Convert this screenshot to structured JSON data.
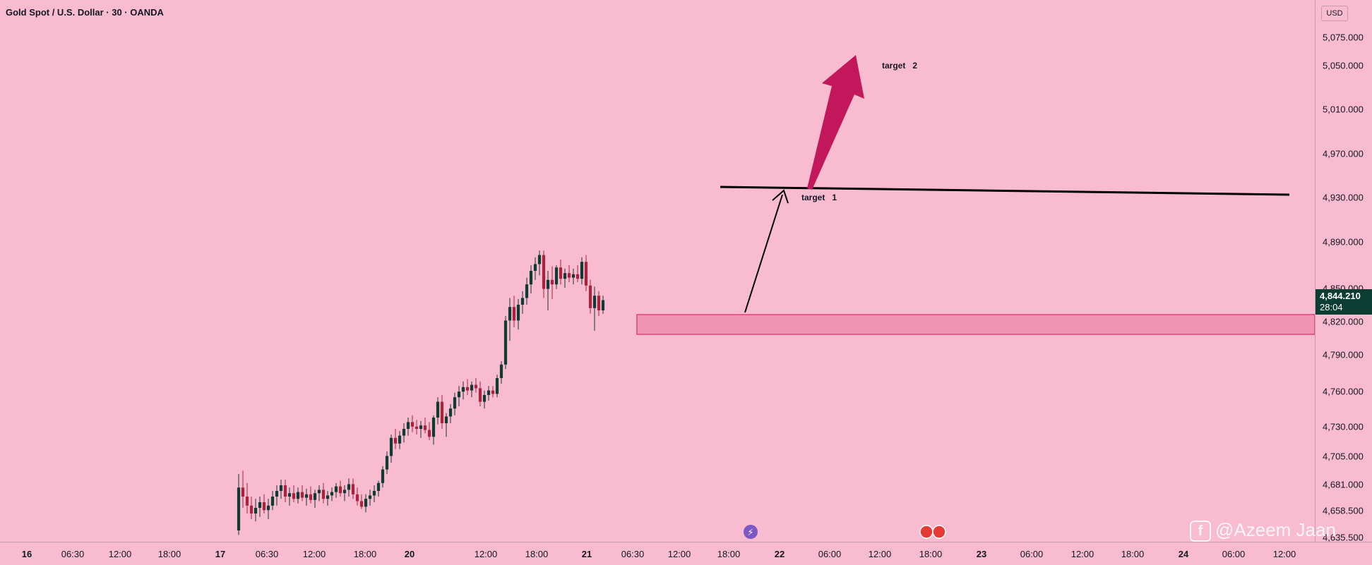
{
  "header": {
    "title": "Gold Spot / U.S. Dollar · 30 · OANDA"
  },
  "axis": {
    "currency": "USD",
    "price_ticks": [
      "5,075.000",
      "5,050.000",
      "5,010.000",
      "4,970.000",
      "4,930.000",
      "4,890.000",
      "4,850.000",
      "4,820.000",
      "4,790.000",
      "4,760.000",
      "4,730.000",
      "4,705.000",
      "4,681.000",
      "4,658.500",
      "4,635.500"
    ],
    "time_ticks": [
      {
        "label": "16",
        "bold": true
      },
      {
        "label": "06:30",
        "bold": false
      },
      {
        "label": "12:00",
        "bold": false
      },
      {
        "label": "18:00",
        "bold": false
      },
      {
        "label": "17",
        "bold": true
      },
      {
        "label": "06:30",
        "bold": false
      },
      {
        "label": "12:00",
        "bold": false
      },
      {
        "label": "18:00",
        "bold": false
      },
      {
        "label": "20",
        "bold": true
      },
      {
        "label": "12:00",
        "bold": false
      },
      {
        "label": "18:00",
        "bold": false
      },
      {
        "label": "21",
        "bold": true
      },
      {
        "label": "06:30",
        "bold": false
      },
      {
        "label": "12:00",
        "bold": false
      },
      {
        "label": "18:00",
        "bold": false
      },
      {
        "label": "22",
        "bold": true
      },
      {
        "label": "06:00",
        "bold": false
      },
      {
        "label": "12:00",
        "bold": false
      },
      {
        "label": "18:00",
        "bold": false
      },
      {
        "label": "23",
        "bold": true
      },
      {
        "label": "06:00",
        "bold": false
      },
      {
        "label": "12:00",
        "bold": false
      },
      {
        "label": "18:00",
        "bold": false
      },
      {
        "label": "24",
        "bold": true
      },
      {
        "label": "06:00",
        "bold": false
      },
      {
        "label": "12:00",
        "bold": false
      }
    ]
  },
  "last_price": {
    "price": "4,844.210",
    "countdown": "28:04"
  },
  "annotations": {
    "target1": "target   1",
    "target2": "target   2"
  },
  "watermark": {
    "text": "@Azeem Jaan"
  },
  "colors": {
    "background": "#f8bbd0",
    "up": "#0f3b32",
    "down": "#a8233d",
    "zone": "#f194b4",
    "zone_border": "#e0407a",
    "arrow": "#c2185b"
  },
  "chart_data": {
    "type": "candlestick",
    "symbol": "Gold Spot / U.S. Dollar",
    "interval": "30",
    "ylim": [
      4635.5,
      5086
    ],
    "levels": {
      "target_line": 4935,
      "support_zone": [
        4812,
        4828
      ]
    },
    "candles": [
      {
        "o": 4640,
        "h": 4690,
        "l": 4636,
        "c": 4678
      },
      {
        "o": 4678,
        "h": 4693,
        "l": 4660,
        "c": 4670
      },
      {
        "o": 4670,
        "h": 4682,
        "l": 4655,
        "c": 4662
      },
      {
        "o": 4662,
        "h": 4670,
        "l": 4650,
        "c": 4655
      },
      {
        "o": 4655,
        "h": 4668,
        "l": 4648,
        "c": 4660
      },
      {
        "o": 4660,
        "h": 4670,
        "l": 4652,
        "c": 4665
      },
      {
        "o": 4665,
        "h": 4672,
        "l": 4655,
        "c": 4658
      },
      {
        "o": 4658,
        "h": 4668,
        "l": 4650,
        "c": 4662
      },
      {
        "o": 4662,
        "h": 4675,
        "l": 4658,
        "c": 4670
      },
      {
        "o": 4670,
        "h": 4680,
        "l": 4662,
        "c": 4675
      },
      {
        "o": 4675,
        "h": 4685,
        "l": 4668,
        "c": 4680
      },
      {
        "o": 4680,
        "h": 4685,
        "l": 4665,
        "c": 4670
      },
      {
        "o": 4670,
        "h": 4678,
        "l": 4662,
        "c": 4673
      },
      {
        "o": 4673,
        "h": 4680,
        "l": 4665,
        "c": 4668
      },
      {
        "o": 4668,
        "h": 4678,
        "l": 4664,
        "c": 4674
      },
      {
        "o": 4674,
        "h": 4680,
        "l": 4666,
        "c": 4669
      },
      {
        "o": 4669,
        "h": 4677,
        "l": 4662,
        "c": 4672
      },
      {
        "o": 4672,
        "h": 4679,
        "l": 4664,
        "c": 4667
      },
      {
        "o": 4667,
        "h": 4676,
        "l": 4660,
        "c": 4673
      },
      {
        "o": 4673,
        "h": 4680,
        "l": 4666,
        "c": 4676
      },
      {
        "o": 4676,
        "h": 4682,
        "l": 4664,
        "c": 4668
      },
      {
        "o": 4668,
        "h": 4675,
        "l": 4662,
        "c": 4671
      },
      {
        "o": 4671,
        "h": 4678,
        "l": 4666,
        "c": 4674
      },
      {
        "o": 4674,
        "h": 4682,
        "l": 4669,
        "c": 4679
      },
      {
        "o": 4679,
        "h": 4684,
        "l": 4670,
        "c": 4673
      },
      {
        "o": 4673,
        "h": 4680,
        "l": 4666,
        "c": 4676
      },
      {
        "o": 4676,
        "h": 4686,
        "l": 4670,
        "c": 4681
      },
      {
        "o": 4681,
        "h": 4686,
        "l": 4668,
        "c": 4672
      },
      {
        "o": 4672,
        "h": 4678,
        "l": 4662,
        "c": 4666
      },
      {
        "o": 4666,
        "h": 4672,
        "l": 4659,
        "c": 4661
      },
      {
        "o": 4661,
        "h": 4672,
        "l": 4656,
        "c": 4668
      },
      {
        "o": 4668,
        "h": 4676,
        "l": 4662,
        "c": 4671
      },
      {
        "o": 4671,
        "h": 4680,
        "l": 4665,
        "c": 4675
      },
      {
        "o": 4675,
        "h": 4684,
        "l": 4670,
        "c": 4682
      },
      {
        "o": 4682,
        "h": 4697,
        "l": 4678,
        "c": 4694
      },
      {
        "o": 4694,
        "h": 4710,
        "l": 4690,
        "c": 4706
      },
      {
        "o": 4706,
        "h": 4725,
        "l": 4700,
        "c": 4722
      },
      {
        "o": 4722,
        "h": 4730,
        "l": 4712,
        "c": 4717
      },
      {
        "o": 4717,
        "h": 4728,
        "l": 4712,
        "c": 4724
      },
      {
        "o": 4724,
        "h": 4735,
        "l": 4718,
        "c": 4730
      },
      {
        "o": 4730,
        "h": 4740,
        "l": 4724,
        "c": 4736
      },
      {
        "o": 4736,
        "h": 4742,
        "l": 4727,
        "c": 4732
      },
      {
        "o": 4732,
        "h": 4738,
        "l": 4725,
        "c": 4730
      },
      {
        "o": 4730,
        "h": 4737,
        "l": 4722,
        "c": 4733
      },
      {
        "o": 4733,
        "h": 4740,
        "l": 4726,
        "c": 4729
      },
      {
        "o": 4729,
        "h": 4736,
        "l": 4720,
        "c": 4723
      },
      {
        "o": 4723,
        "h": 4742,
        "l": 4716,
        "c": 4740
      },
      {
        "o": 4740,
        "h": 4758,
        "l": 4734,
        "c": 4754
      },
      {
        "o": 4754,
        "h": 4760,
        "l": 4730,
        "c": 4735
      },
      {
        "o": 4735,
        "h": 4744,
        "l": 4723,
        "c": 4741
      },
      {
        "o": 4741,
        "h": 4752,
        "l": 4735,
        "c": 4748
      },
      {
        "o": 4748,
        "h": 4762,
        "l": 4742,
        "c": 4758
      },
      {
        "o": 4758,
        "h": 4768,
        "l": 4750,
        "c": 4763
      },
      {
        "o": 4763,
        "h": 4772,
        "l": 4756,
        "c": 4767
      },
      {
        "o": 4767,
        "h": 4774,
        "l": 4760,
        "c": 4764
      },
      {
        "o": 4764,
        "h": 4772,
        "l": 4758,
        "c": 4769
      },
      {
        "o": 4769,
        "h": 4775,
        "l": 4762,
        "c": 4766
      },
      {
        "o": 4766,
        "h": 4772,
        "l": 4750,
        "c": 4754
      },
      {
        "o": 4754,
        "h": 4764,
        "l": 4748,
        "c": 4760
      },
      {
        "o": 4760,
        "h": 4768,
        "l": 4755,
        "c": 4764
      },
      {
        "o": 4764,
        "h": 4768,
        "l": 4758,
        "c": 4761
      },
      {
        "o": 4761,
        "h": 4778,
        "l": 4758,
        "c": 4775
      },
      {
        "o": 4775,
        "h": 4790,
        "l": 4770,
        "c": 4787
      },
      {
        "o": 4787,
        "h": 4830,
        "l": 4783,
        "c": 4826
      },
      {
        "o": 4826,
        "h": 4846,
        "l": 4808,
        "c": 4838
      },
      {
        "o": 4838,
        "h": 4848,
        "l": 4820,
        "c": 4826
      },
      {
        "o": 4826,
        "h": 4845,
        "l": 4818,
        "c": 4840
      },
      {
        "o": 4840,
        "h": 4852,
        "l": 4832,
        "c": 4846
      },
      {
        "o": 4846,
        "h": 4864,
        "l": 4840,
        "c": 4858
      },
      {
        "o": 4858,
        "h": 4875,
        "l": 4850,
        "c": 4870
      },
      {
        "o": 4870,
        "h": 4882,
        "l": 4862,
        "c": 4876
      },
      {
        "o": 4876,
        "h": 4888,
        "l": 4866,
        "c": 4884
      },
      {
        "o": 4884,
        "h": 4888,
        "l": 4846,
        "c": 4854
      },
      {
        "o": 4854,
        "h": 4870,
        "l": 4835,
        "c": 4862
      },
      {
        "o": 4862,
        "h": 4874,
        "l": 4845,
        "c": 4858
      },
      {
        "o": 4858,
        "h": 4875,
        "l": 4854,
        "c": 4873
      },
      {
        "o": 4873,
        "h": 4880,
        "l": 4858,
        "c": 4863
      },
      {
        "o": 4863,
        "h": 4872,
        "l": 4855,
        "c": 4868
      },
      {
        "o": 4868,
        "h": 4875,
        "l": 4860,
        "c": 4864
      },
      {
        "o": 4864,
        "h": 4872,
        "l": 4858,
        "c": 4867
      },
      {
        "o": 4867,
        "h": 4875,
        "l": 4860,
        "c": 4863
      },
      {
        "o": 4863,
        "h": 4882,
        "l": 4858,
        "c": 4878
      },
      {
        "o": 4878,
        "h": 4884,
        "l": 4852,
        "c": 4857
      },
      {
        "o": 4857,
        "h": 4862,
        "l": 4832,
        "c": 4837
      },
      {
        "o": 4837,
        "h": 4856,
        "l": 4817,
        "c": 4848
      },
      {
        "o": 4848,
        "h": 4852,
        "l": 4830,
        "c": 4835
      },
      {
        "o": 4835,
        "h": 4848,
        "l": 4832,
        "c": 4844
      }
    ]
  }
}
